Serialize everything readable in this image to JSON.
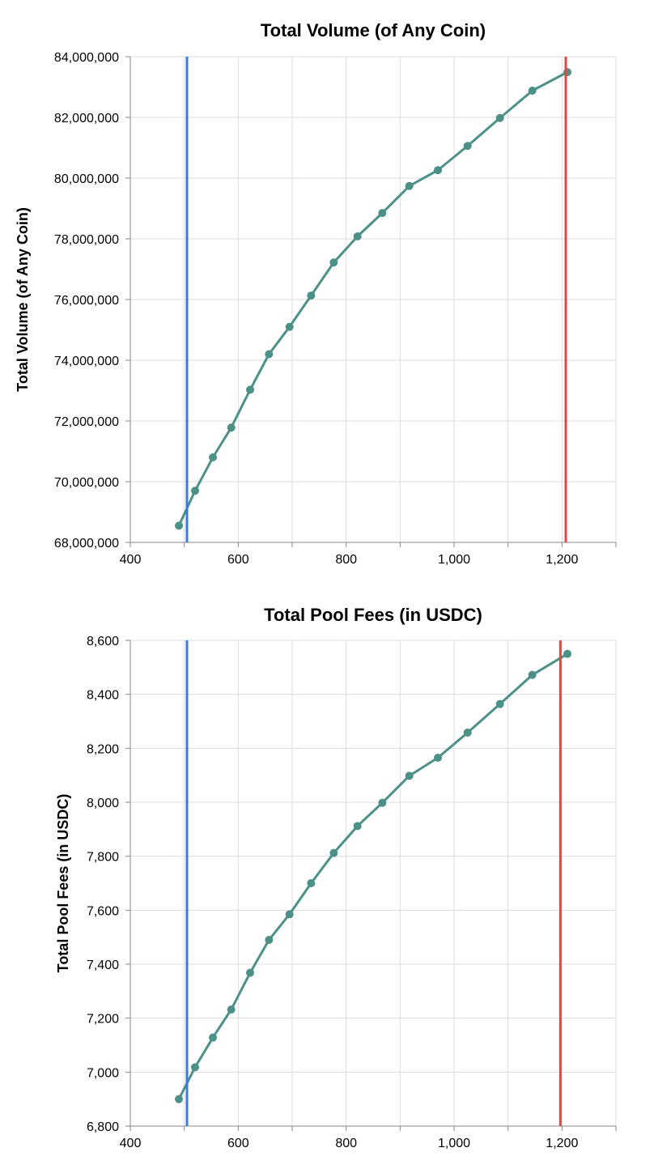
{
  "chart_data": [
    {
      "type": "line",
      "title": "Total Volume (of Any Coin)",
      "xlabel": "",
      "ylabel": "Total Volume (of Any Coin)",
      "xlim": [
        400,
        1300
      ],
      "ylim": [
        68000000,
        84000000
      ],
      "xticks": [
        400,
        600,
        800,
        1000,
        1200
      ],
      "xtick_labels": [
        "400",
        "600",
        "800",
        "1,000",
        "1,200"
      ],
      "yticks": [
        68000000,
        70000000,
        72000000,
        74000000,
        76000000,
        78000000,
        80000000,
        82000000,
        84000000
      ],
      "ytick_labels": [
        "68,000,000",
        "70,000,000",
        "72,000,000",
        "74,000,000",
        "76,000,000",
        "78,000,000",
        "80,000,000",
        "82,000,000",
        "84,000,000"
      ],
      "grid": true,
      "series": [
        {
          "color": "#4c9188",
          "x": [
            490,
            520,
            553,
            587,
            622,
            657,
            695,
            735,
            777,
            821,
            867,
            917,
            970,
            1025,
            1085,
            1145,
            1210
          ],
          "y": [
            68550000,
            69700000,
            70800000,
            71780000,
            73030000,
            74200000,
            75100000,
            76130000,
            77220000,
            78080000,
            78850000,
            79740000,
            80260000,
            81060000,
            81980000,
            82880000,
            83490000
          ]
        }
      ],
      "vlines": [
        {
          "x": 505,
          "color": "#3b78e7"
        },
        {
          "x": 1207,
          "color": "#e04646"
        }
      ]
    },
    {
      "type": "line",
      "title": "Total Pool Fees (in USDC)",
      "xlabel": "",
      "ylabel": "Total Pool Fees (in USDC)",
      "xlim": [
        400,
        1300
      ],
      "ylim": [
        6800,
        8600
      ],
      "xticks": [
        400,
        600,
        800,
        1000,
        1200
      ],
      "xtick_labels": [
        "400",
        "600",
        "800",
        "1,000",
        "1,200"
      ],
      "yticks": [
        6800,
        7000,
        7200,
        7400,
        7600,
        7800,
        8000,
        8200,
        8400,
        8600
      ],
      "ytick_labels": [
        "6,800",
        "7,000",
        "7,200",
        "7,400",
        "7,600",
        "7,800",
        "8,000",
        "8,200",
        "8,400",
        "8,600"
      ],
      "grid": true,
      "series": [
        {
          "color": "#4c9188",
          "x": [
            490,
            520,
            553,
            587,
            622,
            657,
            695,
            735,
            777,
            821,
            867,
            917,
            970,
            1025,
            1085,
            1145,
            1210
          ],
          "y": [
            6900,
            7018,
            7128,
            7232,
            7368,
            7490,
            7585,
            7700,
            7812,
            7912,
            7998,
            8098,
            8165,
            8258,
            8364,
            8472,
            8550
          ]
        }
      ],
      "vlines": [
        {
          "x": 505,
          "color": "#3b78e7"
        },
        {
          "x": 1197,
          "color": "#e04646"
        }
      ]
    }
  ]
}
